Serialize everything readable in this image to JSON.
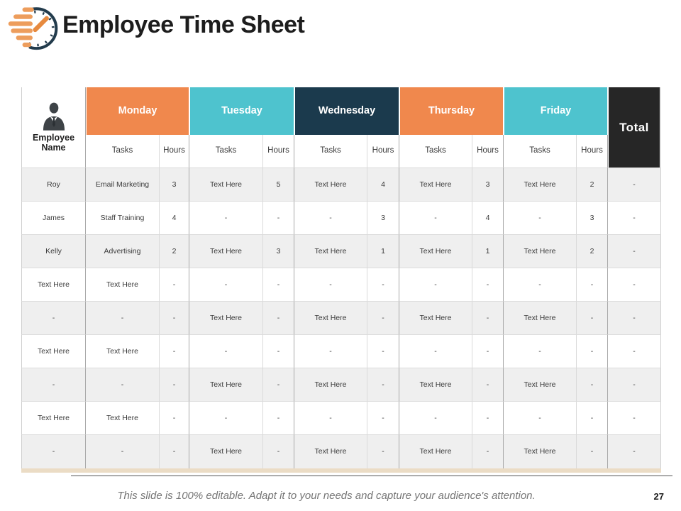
{
  "slide": {
    "title": "Employee Time Sheet",
    "footer_note": "This slide is 100% editable. Adapt it to your needs and capture your audience's attention.",
    "page_number": "27"
  },
  "colors": {
    "orange": "#F0884D",
    "teal": "#4EC3CE",
    "navy": "#1B3A4D",
    "charcoal": "#262626",
    "row_alt": "#EFEFEF",
    "table_bottom_edge": "#EBDCC5",
    "logo_bar_orange": "#ED9D5C",
    "logo_ring_navy": "#223B4C"
  },
  "table": {
    "employee_header": "Employee Name",
    "subheaders": {
      "tasks": "Tasks",
      "hours": "Hours"
    },
    "total_header": "Total",
    "days": [
      {
        "label": "Monday",
        "color": "#F0884D"
      },
      {
        "label": "Tuesday",
        "color": "#4EC3CE"
      },
      {
        "label": "Wednesday",
        "color": "#1B3A4D"
      },
      {
        "label": "Thursday",
        "color": "#F0884D"
      },
      {
        "label": "Friday",
        "color": "#4EC3CE"
      }
    ],
    "rows": [
      {
        "employee": "Roy",
        "days": [
          [
            "Email Marketing",
            "3"
          ],
          [
            "Text Here",
            "5"
          ],
          [
            "Text Here",
            "4"
          ],
          [
            "Text Here",
            "3"
          ],
          [
            "Text Here",
            "2"
          ]
        ],
        "total": "-"
      },
      {
        "employee": "James",
        "days": [
          [
            "Staff Training",
            "4"
          ],
          [
            "-",
            "-"
          ],
          [
            "-",
            "3"
          ],
          [
            "-",
            "4"
          ],
          [
            "-",
            "3"
          ]
        ],
        "total": "-"
      },
      {
        "employee": "Kelly",
        "days": [
          [
            "Advertising",
            "2"
          ],
          [
            "Text Here",
            "3"
          ],
          [
            "Text Here",
            "1"
          ],
          [
            "Text Here",
            "1"
          ],
          [
            "Text Here",
            "2"
          ]
        ],
        "total": "-"
      },
      {
        "employee": "Text Here",
        "days": [
          [
            "Text Here",
            "-"
          ],
          [
            "-",
            "-"
          ],
          [
            "-",
            "-"
          ],
          [
            "-",
            "-"
          ],
          [
            "-",
            "-"
          ]
        ],
        "total": "-"
      },
      {
        "employee": "-",
        "days": [
          [
            "-",
            "-"
          ],
          [
            "Text Here",
            "-"
          ],
          [
            "Text Here",
            "-"
          ],
          [
            "Text Here",
            "-"
          ],
          [
            "Text Here",
            "-"
          ]
        ],
        "total": "-"
      },
      {
        "employee": "Text Here",
        "days": [
          [
            "Text Here",
            "-"
          ],
          [
            "-",
            "-"
          ],
          [
            "-",
            "-"
          ],
          [
            "-",
            "-"
          ],
          [
            "-",
            "-"
          ]
        ],
        "total": "-"
      },
      {
        "employee": "-",
        "days": [
          [
            "-",
            "-"
          ],
          [
            "Text Here",
            "-"
          ],
          [
            "Text Here",
            "-"
          ],
          [
            "Text Here",
            "-"
          ],
          [
            "Text Here",
            "-"
          ]
        ],
        "total": "-"
      },
      {
        "employee": "Text Here",
        "days": [
          [
            "Text Here",
            "-"
          ],
          [
            "-",
            "-"
          ],
          [
            "-",
            "-"
          ],
          [
            "-",
            "-"
          ],
          [
            "-",
            "-"
          ]
        ],
        "total": "-"
      },
      {
        "employee": "-",
        "days": [
          [
            "-",
            "-"
          ],
          [
            "Text Here",
            "-"
          ],
          [
            "Text Here",
            "-"
          ],
          [
            "Text Here",
            "-"
          ],
          [
            "Text Here",
            "-"
          ]
        ],
        "total": "-"
      }
    ]
  }
}
